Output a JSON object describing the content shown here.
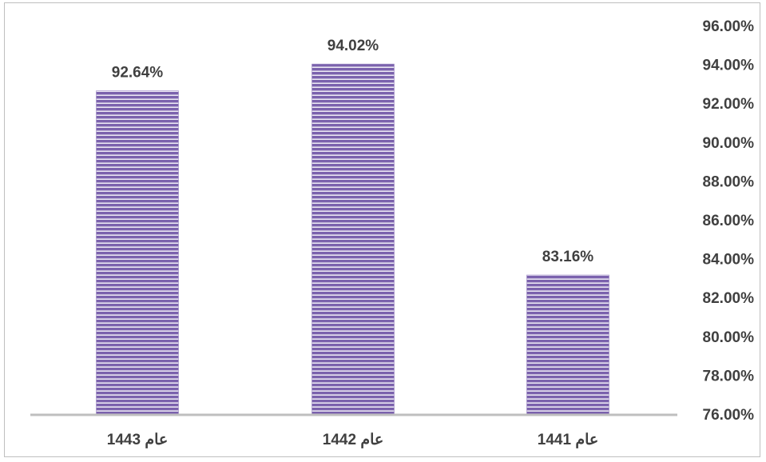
{
  "chart_data": {
    "type": "bar",
    "categories": [
      "عام 1443",
      "عام 1442",
      "عام 1441"
    ],
    "values": [
      92.64,
      94.02,
      83.16
    ],
    "data_labels": [
      "92.64%",
      "94.02%",
      "83.16%"
    ],
    "ylim": [
      76,
      96
    ],
    "yticks": [
      76,
      78,
      80,
      82,
      84,
      86,
      88,
      90,
      92,
      94,
      96
    ],
    "ytick_labels": [
      "76.00%",
      "78.00%",
      "80.00%",
      "82.00%",
      "84.00%",
      "86.00%",
      "88.00%",
      "90.00%",
      "92.00%",
      "94.00%",
      "96.00%"
    ],
    "y_axis_side": "right",
    "grid": false,
    "bar_color": "#7b62ad",
    "bar_stripe_color": "#ffffff",
    "axis_color": "#bfbfbf"
  }
}
